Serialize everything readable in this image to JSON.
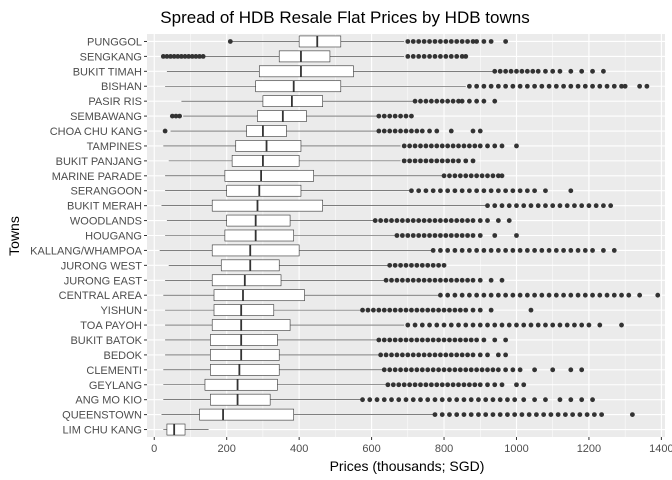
{
  "chart_data": {
    "type": "boxplot",
    "orientation": "horizontal",
    "title": "Spread of HDB Resale Flat Prices by HDB towns",
    "xlabel": "Prices (thousands; SGD)",
    "ylabel": "Towns",
    "xlim": [
      -20,
      1410
    ],
    "x_ticks": [
      0,
      200,
      400,
      600,
      800,
      1000,
      1200,
      1400
    ],
    "grid": true,
    "panel_color": "#ebebeb",
    "grid_color": "#ffffff",
    "box_fill": "#ffffff",
    "box_stroke": "#333333",
    "outlier_color": "#333333",
    "series": [
      {
        "name": "PUNGGOL",
        "whisker_low": 208,
        "q1": 400,
        "median": 450,
        "q3": 515,
        "whisker_high": 690,
        "outliers": [
          210,
          700,
          715,
          730,
          745,
          760,
          775,
          790,
          805,
          820,
          835,
          850,
          865,
          880,
          890,
          910,
          930,
          970
        ]
      },
      {
        "name": "SENGKANG",
        "whisker_low": 140,
        "q1": 345,
        "median": 405,
        "q3": 485,
        "whisker_high": 690,
        "outliers": [
          25,
          35,
          45,
          55,
          65,
          75,
          85,
          95,
          105,
          115,
          125,
          135,
          700,
          715,
          730,
          745,
          760,
          775,
          790,
          805,
          820,
          835,
          850,
          860
        ]
      },
      {
        "name": "BUKIT TIMAH",
        "whisker_low": 35,
        "q1": 290,
        "median": 405,
        "q3": 550,
        "whisker_high": 935,
        "outliers": [
          940,
          955,
          970,
          985,
          1000,
          1015,
          1030,
          1045,
          1060,
          1080,
          1100,
          1120,
          1150,
          1180,
          1210,
          1240
        ]
      },
      {
        "name": "BISHAN",
        "whisker_low": 30,
        "q1": 280,
        "median": 385,
        "q3": 515,
        "whisker_high": 860,
        "outliers": [
          870,
          890,
          910,
          930,
          950,
          970,
          990,
          1010,
          1030,
          1050,
          1070,
          1090,
          1110,
          1130,
          1150,
          1170,
          1190,
          1210,
          1230,
          1250,
          1270,
          1290,
          1300,
          1340,
          1360
        ]
      },
      {
        "name": "PASIR RIS",
        "whisker_low": 75,
        "q1": 300,
        "median": 380,
        "q3": 465,
        "whisker_high": 715,
        "outliers": [
          720,
          735,
          750,
          765,
          780,
          795,
          810,
          825,
          840,
          850,
          870,
          890,
          910,
          940
        ]
      },
      {
        "name": "SEMBAWANG",
        "whisker_low": 80,
        "q1": 285,
        "median": 355,
        "q3": 420,
        "whisker_high": 615,
        "outliers": [
          50,
          60,
          70,
          620,
          635,
          650,
          665,
          680,
          695,
          710
        ]
      },
      {
        "name": "CHOA CHU KANG",
        "whisker_low": 45,
        "q1": 255,
        "median": 300,
        "q3": 365,
        "whisker_high": 615,
        "outliers": [
          30,
          620,
          635,
          650,
          665,
          680,
          695,
          710,
          725,
          740,
          760,
          780,
          820,
          880,
          900
        ]
      },
      {
        "name": "TAMPINES",
        "whisker_low": 25,
        "q1": 225,
        "median": 310,
        "q3": 405,
        "whisker_high": 680,
        "outliers": [
          690,
          705,
          720,
          735,
          750,
          765,
          780,
          795,
          810,
          825,
          840,
          855,
          870,
          885,
          900,
          920,
          940,
          960,
          1000
        ]
      },
      {
        "name": "BUKIT PANJANG",
        "whisker_low": 40,
        "q1": 215,
        "median": 300,
        "q3": 400,
        "whisker_high": 680,
        "outliers": [
          690,
          705,
          720,
          735,
          750,
          765,
          780,
          795,
          810,
          825,
          840,
          860,
          880
        ]
      },
      {
        "name": "MARINE PARADE",
        "whisker_low": 30,
        "q1": 195,
        "median": 295,
        "q3": 440,
        "whisker_high": 800,
        "outliers": [
          800,
          815,
          830,
          845,
          860,
          875,
          890,
          905,
          920,
          935,
          950,
          960
        ]
      },
      {
        "name": "SERANGOON",
        "whisker_low": 30,
        "q1": 200,
        "median": 290,
        "q3": 405,
        "whisker_high": 705,
        "outliers": [
          710,
          730,
          750,
          770,
          790,
          810,
          830,
          850,
          870,
          890,
          910,
          930,
          950,
          970,
          990,
          1010,
          1030,
          1050,
          1080,
          1150
        ]
      },
      {
        "name": "BUKIT MERAH",
        "whisker_low": 20,
        "q1": 160,
        "median": 285,
        "q3": 465,
        "whisker_high": 915,
        "outliers": [
          920,
          940,
          960,
          980,
          1000,
          1020,
          1040,
          1060,
          1080,
          1100,
          1120,
          1140,
          1160,
          1180,
          1200,
          1220,
          1240,
          1260
        ]
      },
      {
        "name": "WOODLANDS",
        "whisker_low": 35,
        "q1": 200,
        "median": 280,
        "q3": 375,
        "whisker_high": 605,
        "outliers": [
          610,
          625,
          640,
          655,
          670,
          685,
          700,
          715,
          730,
          745,
          760,
          775,
          790,
          805,
          820,
          835,
          850,
          865,
          880,
          900,
          920,
          950,
          980
        ]
      },
      {
        "name": "HOUGANG",
        "whisker_low": 30,
        "q1": 195,
        "median": 280,
        "q3": 385,
        "whisker_high": 665,
        "outliers": [
          670,
          685,
          700,
          715,
          730,
          745,
          760,
          775,
          790,
          805,
          820,
          835,
          850,
          865,
          880,
          900,
          940,
          1000
        ]
      },
      {
        "name": "KALLANG/WHAMPOA",
        "whisker_low": 15,
        "q1": 160,
        "median": 265,
        "q3": 400,
        "whisker_high": 770,
        "outliers": [
          770,
          790,
          810,
          830,
          850,
          870,
          890,
          910,
          930,
          950,
          970,
          990,
          1010,
          1030,
          1050,
          1070,
          1090,
          1110,
          1130,
          1150,
          1170,
          1190,
          1210,
          1240,
          1270
        ]
      },
      {
        "name": "JURONG WEST",
        "whisker_low": 40,
        "q1": 185,
        "median": 265,
        "q3": 345,
        "whisker_high": 650,
        "outliers": [
          650,
          665,
          680,
          695,
          710,
          725,
          740,
          755,
          770,
          785,
          800
        ]
      },
      {
        "name": "JURONG EAST",
        "whisker_low": 30,
        "q1": 160,
        "median": 250,
        "q3": 350,
        "whisker_high": 635,
        "outliers": [
          640,
          655,
          670,
          685,
          700,
          715,
          730,
          745,
          760,
          775,
          790,
          805,
          820,
          835,
          850,
          865,
          880,
          900,
          930,
          960
        ]
      },
      {
        "name": "CENTRAL AREA",
        "whisker_low": 25,
        "q1": 165,
        "median": 245,
        "q3": 415,
        "whisker_high": 785,
        "outliers": [
          790,
          810,
          830,
          850,
          870,
          890,
          910,
          930,
          950,
          970,
          990,
          1010,
          1030,
          1050,
          1070,
          1090,
          1110,
          1130,
          1150,
          1170,
          1190,
          1210,
          1230,
          1250,
          1270,
          1290,
          1310,
          1340,
          1390
        ]
      },
      {
        "name": "YISHUN",
        "whisker_low": 30,
        "q1": 165,
        "median": 240,
        "q3": 330,
        "whisker_high": 570,
        "outliers": [
          575,
          590,
          605,
          620,
          635,
          650,
          665,
          680,
          695,
          710,
          725,
          740,
          755,
          770,
          785,
          800,
          815,
          830,
          845,
          860,
          880,
          900,
          930,
          1040
        ]
      },
      {
        "name": "TOA PAYOH",
        "whisker_low": 30,
        "q1": 160,
        "median": 240,
        "q3": 375,
        "whisker_high": 690,
        "outliers": [
          700,
          720,
          740,
          760,
          780,
          800,
          820,
          840,
          860,
          880,
          900,
          920,
          940,
          960,
          980,
          1000,
          1020,
          1040,
          1060,
          1080,
          1100,
          1120,
          1140,
          1160,
          1180,
          1200,
          1230,
          1290
        ]
      },
      {
        "name": "BUKIT BATOK",
        "whisker_low": 30,
        "q1": 155,
        "median": 240,
        "q3": 340,
        "whisker_high": 615,
        "outliers": [
          620,
          635,
          650,
          665,
          680,
          695,
          710,
          725,
          740,
          755,
          770,
          785,
          800,
          815,
          830,
          845,
          860,
          875,
          890,
          910,
          940,
          970
        ]
      },
      {
        "name": "BEDOK",
        "whisker_low": 30,
        "q1": 155,
        "median": 240,
        "q3": 345,
        "whisker_high": 620,
        "outliers": [
          625,
          640,
          655,
          670,
          685,
          700,
          715,
          730,
          745,
          760,
          775,
          790,
          805,
          820,
          835,
          850,
          865,
          880,
          900,
          920,
          950,
          970
        ]
      },
      {
        "name": "CLEMENTI",
        "whisker_low": 25,
        "q1": 155,
        "median": 235,
        "q3": 345,
        "whisker_high": 630,
        "outliers": [
          635,
          650,
          665,
          680,
          695,
          710,
          725,
          740,
          755,
          770,
          785,
          800,
          815,
          830,
          845,
          860,
          875,
          890,
          905,
          920,
          935,
          950,
          970,
          990,
          1010,
          1050,
          1100,
          1150,
          1180
        ]
      },
      {
        "name": "GEYLANG",
        "whisker_low": 25,
        "q1": 140,
        "median": 230,
        "q3": 340,
        "whisker_high": 640,
        "outliers": [
          645,
          660,
          675,
          690,
          705,
          720,
          735,
          750,
          765,
          780,
          795,
          810,
          825,
          840,
          855,
          870,
          885,
          900,
          920,
          940,
          960,
          1000,
          1020
        ]
      },
      {
        "name": "ANG MO KIO",
        "whisker_low": 25,
        "q1": 155,
        "median": 230,
        "q3": 320,
        "whisker_high": 570,
        "outliers": [
          575,
          595,
          615,
          635,
          655,
          675,
          695,
          715,
          735,
          755,
          775,
          795,
          815,
          835,
          855,
          875,
          895,
          915,
          935,
          955,
          975,
          995,
          1020,
          1050,
          1080,
          1120,
          1150,
          1180,
          1210
        ]
      },
      {
        "name": "QUEENSTOWN",
        "whisker_low": 20,
        "q1": 125,
        "median": 190,
        "q3": 385,
        "whisker_high": 770,
        "outliers": [
          775,
          795,
          815,
          835,
          855,
          875,
          895,
          915,
          935,
          955,
          975,
          995,
          1015,
          1035,
          1055,
          1075,
          1095,
          1115,
          1135,
          1155,
          1175,
          1195,
          1215,
          1235,
          1320
        ]
      },
      {
        "name": "LIM CHU KANG",
        "whisker_low": 25,
        "q1": 35,
        "median": 55,
        "q3": 85,
        "whisker_high": 150,
        "outliers": []
      }
    ]
  }
}
